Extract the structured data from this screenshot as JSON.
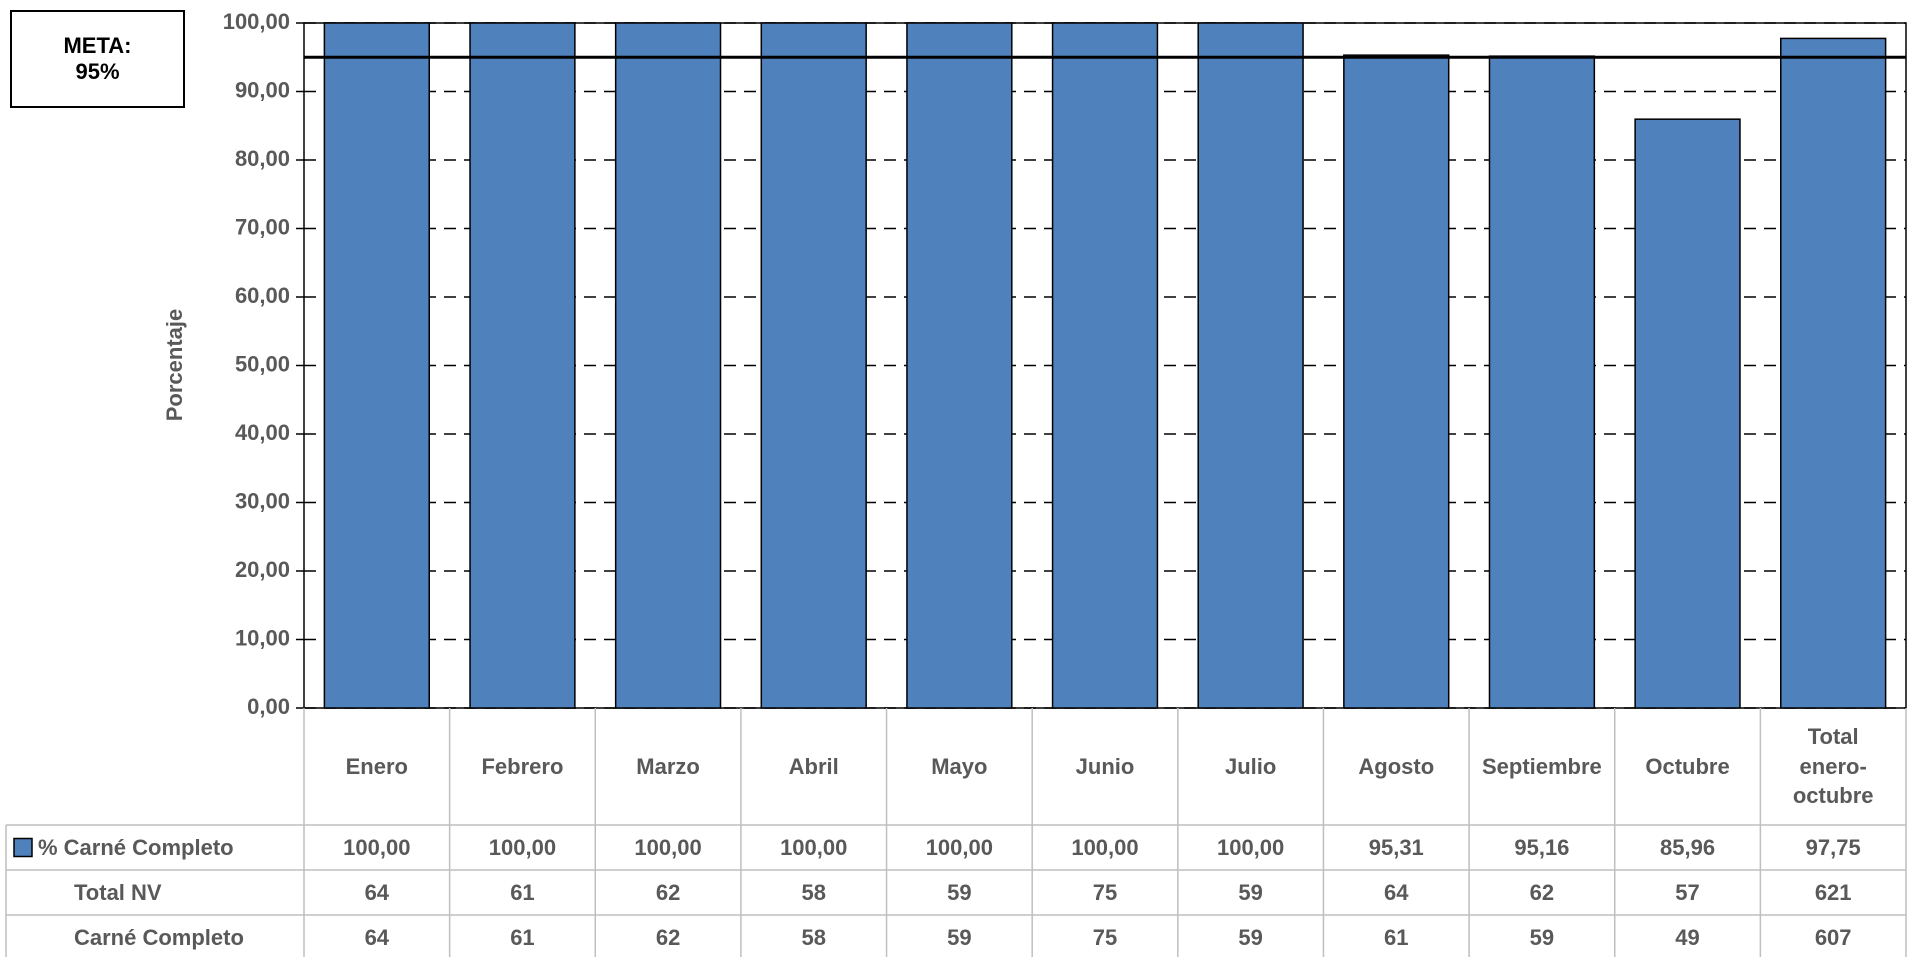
{
  "chart_data": {
    "type": "bar",
    "y_label": "Porcentaje",
    "annotation": "META:",
    "target": {
      "value": 95,
      "label": "95%"
    },
    "categories": [
      "Enero",
      "Febrero",
      "Marzo",
      "Abril",
      "Mayo",
      "Junio",
      "Julio",
      "Agosto",
      "Septiembre",
      "Octubre",
      "Total enero-octubre"
    ],
    "series": [
      {
        "name": "% Carné Completo",
        "color": "#4f81bd",
        "values": [
          100,
          100,
          100,
          100,
          100,
          100,
          100,
          95.31,
          95.16,
          85.96,
          97.75
        ],
        "value_labels": [
          "100,00",
          "100,00",
          "100,00",
          "100,00",
          "100,00",
          "100,00",
          "100,00",
          "95,31",
          "95,16",
          "85,96",
          "97,75"
        ]
      }
    ],
    "table_rows": [
      {
        "name": "Total NV",
        "values": [
          64,
          61,
          62,
          58,
          59,
          75,
          59,
          64,
          62,
          57,
          621
        ]
      },
      {
        "name": "Carné Completo",
        "values": [
          64,
          61,
          62,
          58,
          59,
          75,
          59,
          61,
          59,
          49,
          607
        ]
      }
    ],
    "ylim": [
      0,
      100
    ],
    "yticks": [
      {
        "value": 0,
        "label": "0,00"
      },
      {
        "value": 10,
        "label": "10,00"
      },
      {
        "value": 20,
        "label": "20,00"
      },
      {
        "value": 30,
        "label": "30,00"
      },
      {
        "value": 40,
        "label": "40,00"
      },
      {
        "value": 50,
        "label": "50,00"
      },
      {
        "value": 60,
        "label": "60,00"
      },
      {
        "value": 70,
        "label": "70,00"
      },
      {
        "value": 80,
        "label": "80,00"
      },
      {
        "value": 90,
        "label": "90,00"
      },
      {
        "value": 100,
        "label": "100,00"
      }
    ],
    "grid": true
  }
}
